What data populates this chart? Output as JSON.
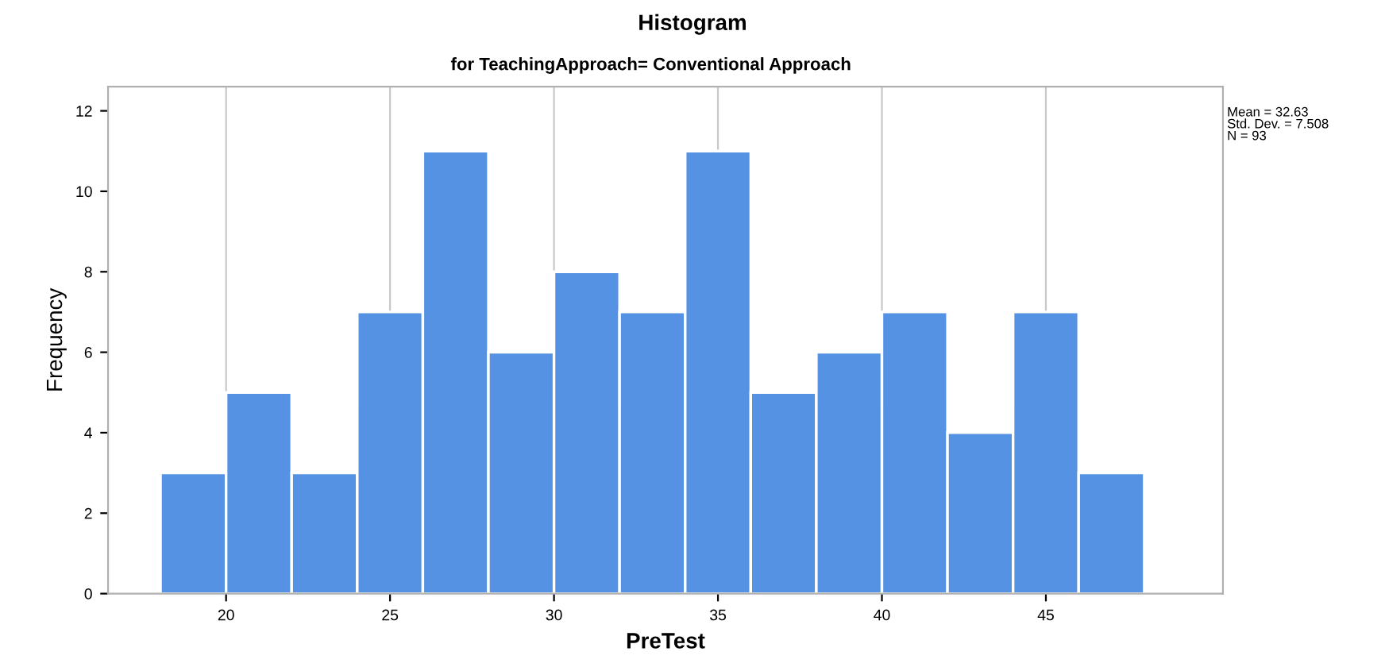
{
  "chart_data": {
    "type": "histogram",
    "title": "Histogram",
    "subtitle": "for TeachingApproach= Conventional Approach",
    "xlabel": "PreTest",
    "ylabel": "Frequency",
    "bins": [
      18,
      20,
      22,
      24,
      26,
      28,
      30,
      32,
      34,
      36,
      38,
      40,
      42,
      44,
      46,
      48
    ],
    "values": [
      3,
      5,
      3,
      7,
      11,
      6,
      8,
      7,
      11,
      5,
      6,
      7,
      4,
      7,
      3
    ],
    "color": "#5592e3",
    "xlim": [
      16.4,
      50.4
    ],
    "xticks": [
      20,
      25,
      30,
      35,
      40,
      45
    ],
    "ylim": [
      0,
      12.6
    ],
    "yticks": [
      0,
      2,
      4,
      6,
      8,
      10,
      12
    ],
    "grid": "x",
    "annotations": [
      "Mean = 32.63\nStd. Dev. = 7.508\nN = 93"
    ]
  }
}
